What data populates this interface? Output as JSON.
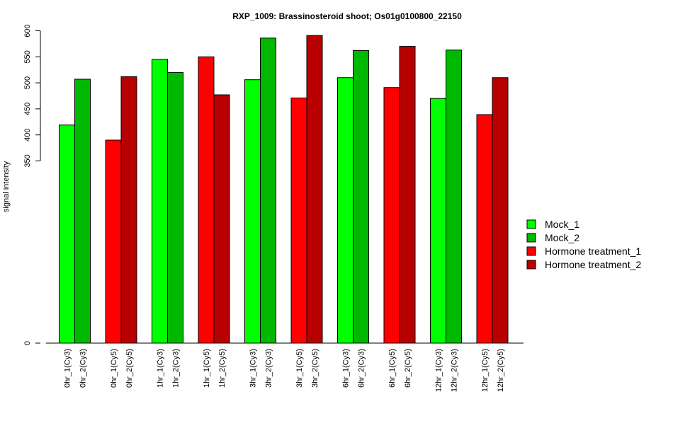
{
  "chart_data": {
    "type": "bar",
    "title": "RXP_1009: Brassinosteroid shoot; Os01g0100800_22150",
    "xlabel": "",
    "ylabel": "signal intensity",
    "y_ticks": [
      "0",
      "350",
      "400",
      "450",
      "500",
      "550",
      "600"
    ],
    "y_axis_note": "broken axis: 0 at baseline, scale 350–600 above",
    "categories": [
      "0hr_1(Cy3)",
      "0hr_2(Cy3)",
      "0hr_1(Cy5)",
      "0hr_2(Cy5)",
      "1hr_1(Cy3)",
      "1hr_2(Cy3)",
      "1hr_1(Cy5)",
      "1hr_2(Cy5)",
      "3hr_1(Cy3)",
      "3hr_2(Cy3)",
      "3hr_1(Cy5)",
      "3hr_2(Cy5)",
      "6hr_1(Cy3)",
      "6hr_2(Cy3)",
      "6hr_1(Cy5)",
      "6hr_2(Cy5)",
      "12hr_1(Cy3)",
      "12hr_2(Cy3)",
      "12hr_1(Cy5)",
      "12hr_2(Cy5)"
    ],
    "values": [
      419,
      507,
      390,
      512,
      545,
      520,
      550,
      477,
      506,
      586,
      471,
      591,
      510,
      562,
      491,
      570,
      470,
      563,
      439,
      510
    ],
    "bar_series": [
      0,
      1,
      2,
      3,
      0,
      1,
      2,
      3,
      0,
      1,
      2,
      3,
      0,
      1,
      2,
      3,
      0,
      1,
      2,
      3
    ],
    "series": [
      {
        "name": "Mock_1",
        "color": "#00ff00"
      },
      {
        "name": "Mock_2",
        "color": "#00b800"
      },
      {
        "name": "Hormone treatment_1",
        "color": "#ff0000"
      },
      {
        "name": "Hormone treatment_2",
        "color": "#b80000"
      }
    ],
    "legend_position": "right",
    "grid": false
  }
}
